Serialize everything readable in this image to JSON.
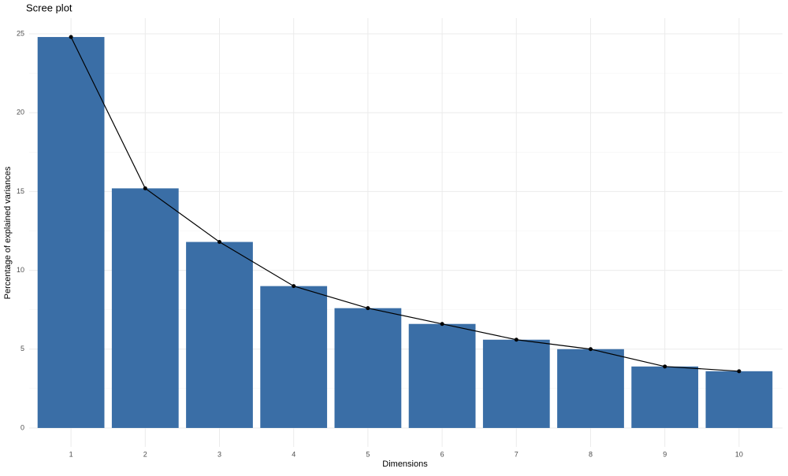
{
  "chart_data": {
    "type": "bar",
    "title": "Scree plot",
    "x_label": "Dimensions",
    "y_label": "Percentage of explained variances",
    "categories": [
      "1",
      "2",
      "3",
      "4",
      "5",
      "6",
      "7",
      "8",
      "9",
      "10"
    ],
    "values": [
      24.8,
      15.2,
      11.8,
      9.0,
      7.6,
      6.6,
      5.6,
      5.0,
      3.9,
      3.6
    ],
    "color": "#3a6ea6",
    "line_color": "#000000",
    "ylim": [
      -1.2,
      26
    ],
    "yticks": [
      0,
      5,
      10,
      15,
      20,
      25
    ],
    "grid": true
  }
}
